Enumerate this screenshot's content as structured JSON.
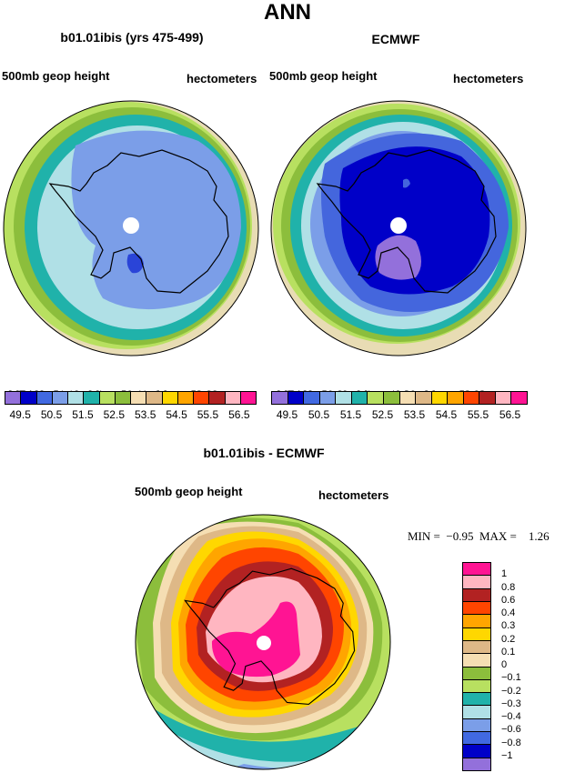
{
  "page_title": "ANN",
  "panels": [
    {
      "title": "b01.01ibis (yrs 475-499)",
      "left_label": "500mb geop height",
      "right_label": "hectometers",
      "stats": {
        "mean_label": "MEAN=",
        "mean": "51.19",
        "min_label": "Min=",
        "min": "50.41",
        "max_label": "Max=",
        "max": "52.66"
      },
      "ring_colors": [
        "#e8dcb4",
        "#b8e060",
        "#8cbe3c",
        "#20b2aa",
        "#b0e0e6",
        "#7b9ee8",
        "#5a78e0",
        "#2a44d8"
      ]
    },
    {
      "title": "ECMWF",
      "left_label": "500mb geop height",
      "right_label": "hectometers",
      "stats": {
        "mean_label": "MEAN=",
        "mean": "50.69",
        "min_label": "Min=",
        "min": "49.30",
        "max_label": "Max=",
        "max": "52.92"
      },
      "ring_colors": [
        "#e8dcb4",
        "#b8e060",
        "#8cbe3c",
        "#20b2aa",
        "#b0e0e6",
        "#7b9ee8",
        "#4466dd",
        "#0000c8",
        "#9370db"
      ]
    }
  ],
  "colorbar_top": {
    "colors": [
      "#9370db",
      "#0000c8",
      "#4169e1",
      "#7b9ee8",
      "#b0e0e6",
      "#20b2aa",
      "#b8e060",
      "#8cbe3c",
      "#f5deb3",
      "#deb887",
      "#ffd700",
      "#ffa500",
      "#ff4500",
      "#b22222",
      "#ffb6c1",
      "#ff1493"
    ],
    "labels": [
      "49.5",
      "50.5",
      "51.5",
      "52.5",
      "53.5",
      "54.5",
      "55.5",
      "56.5"
    ]
  },
  "diff_panel": {
    "title": "b01.01ibis - ECMWF",
    "left_label": "500mb geop height",
    "right_label": "hectometers",
    "min_label": "MIN =",
    "min": "−0.95",
    "max_label": "MAX =",
    "max": "1.26",
    "colorbar_colors": [
      "#ff1493",
      "#ffb6c1",
      "#b22222",
      "#ff4500",
      "#ffa500",
      "#ffd700",
      "#deb887",
      "#f5deb3",
      "#8cbe3c",
      "#b8e060",
      "#20b2aa",
      "#b0e0e6",
      "#7b9ee8",
      "#4169e1",
      "#0000c8",
      "#9370db"
    ],
    "colorbar_labels": [
      "1",
      "0.8",
      "0.6",
      "0.4",
      "0.3",
      "0.2",
      "0.1",
      "0",
      "−0.1",
      "−0.2",
      "−0.3",
      "−0.4",
      "−0.6",
      "−0.8",
      "−1"
    ]
  }
}
